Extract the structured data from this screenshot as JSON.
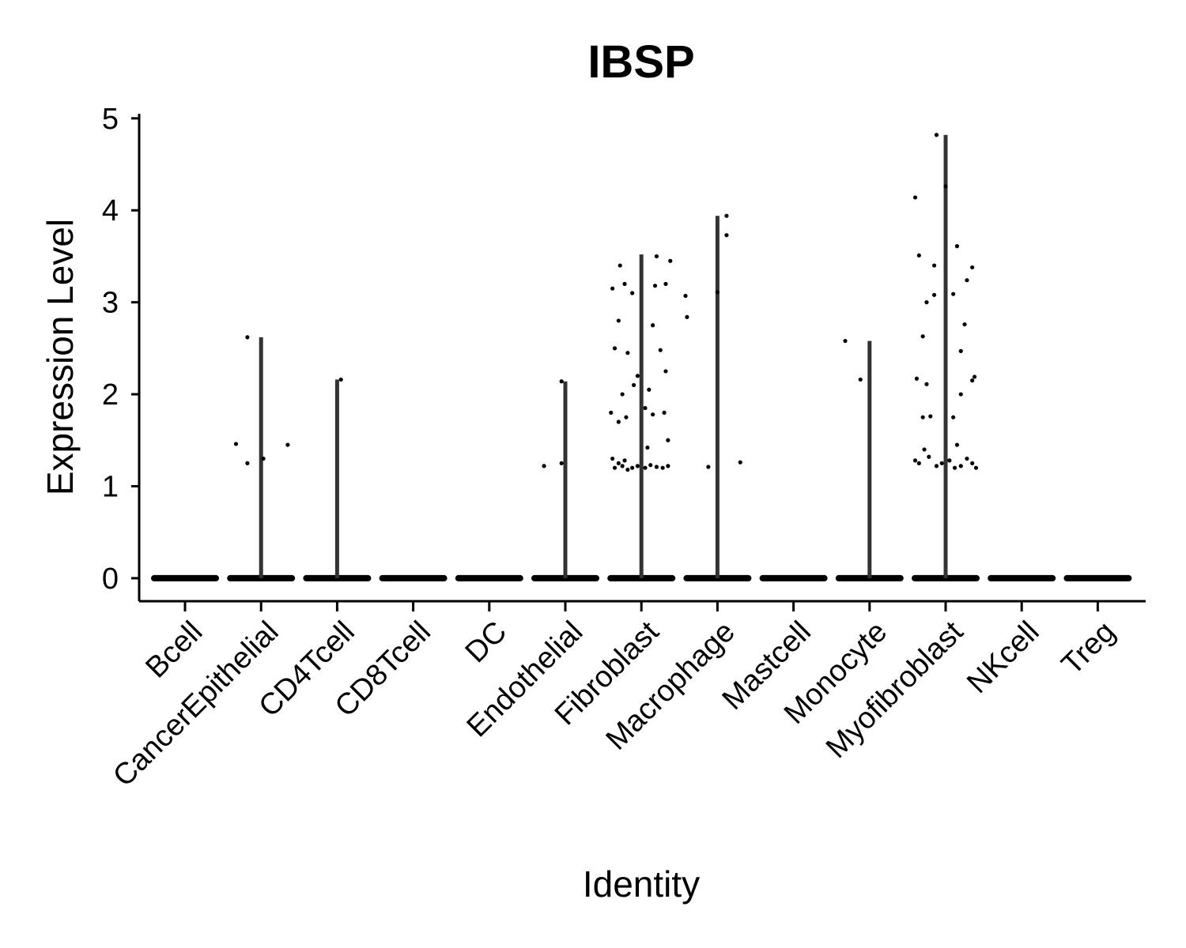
{
  "chart_data": {
    "type": "violin",
    "title": "IBSP",
    "xlabel": "Identity",
    "ylabel": "Expression Level",
    "ylim": [
      -0.25,
      5.05
    ],
    "yticks": [
      0,
      1,
      2,
      3,
      4,
      5
    ],
    "ytick_labels": [
      "0",
      "1",
      "2",
      "3",
      "4",
      "5"
    ],
    "grid": false,
    "legend": "none",
    "colors": {
      "violin": "#333333",
      "points": "#000000",
      "axis": "#000000"
    },
    "categories": [
      "Bcell",
      "CancerEpithelial",
      "CD4Tcell",
      "CD8Tcell",
      "DC",
      "Endothelial",
      "Fibroblast",
      "Macrophage",
      "Mastcell",
      "Monocyte",
      "Myofibroblast",
      "NKcell",
      "Treg"
    ],
    "max_values": [
      0,
      2.62,
      2.16,
      0,
      0,
      2.14,
      3.52,
      3.94,
      0,
      2.58,
      4.82,
      0,
      0
    ],
    "points": [
      [],
      [
        [
          -0.18,
          2.62
        ],
        [
          -0.33,
          1.46
        ],
        [
          -0.18,
          1.25
        ],
        [
          0.03,
          1.3
        ],
        [
          0.35,
          1.45
        ]
      ],
      [
        [
          0.05,
          2.16
        ]
      ],
      [],
      [],
      [
        [
          -0.28,
          1.22
        ],
        [
          -0.05,
          1.25
        ],
        [
          -0.05,
          2.14
        ]
      ],
      [
        [
          -0.4,
          1.8
        ],
        [
          -0.35,
          1.2
        ],
        [
          -0.3,
          1.25
        ],
        [
          -0.25,
          1.22
        ],
        [
          -0.18,
          1.18
        ],
        [
          -0.12,
          1.2
        ],
        [
          -0.05,
          1.22
        ],
        [
          0.05,
          1.2
        ],
        [
          0.12,
          1.23
        ],
        [
          0.2,
          1.21
        ],
        [
          0.28,
          1.2
        ],
        [
          0.35,
          1.22
        ],
        [
          -0.38,
          1.3
        ],
        [
          -0.22,
          1.28
        ],
        [
          0.08,
          1.42
        ],
        [
          -0.3,
          1.7
        ],
        [
          -0.2,
          1.75
        ],
        [
          0.15,
          1.78
        ],
        [
          0.3,
          1.8
        ],
        [
          -0.25,
          2.0
        ],
        [
          -0.1,
          2.1
        ],
        [
          0.1,
          2.05
        ],
        [
          0.32,
          2.25
        ],
        [
          -0.35,
          2.5
        ],
        [
          -0.18,
          2.45
        ],
        [
          0.25,
          2.48
        ],
        [
          -0.3,
          2.8
        ],
        [
          0.15,
          2.75
        ],
        [
          -0.38,
          3.15
        ],
        [
          -0.22,
          3.2
        ],
        [
          -0.12,
          3.1
        ],
        [
          0.18,
          3.18
        ],
        [
          0.32,
          3.2
        ],
        [
          -0.28,
          3.4
        ],
        [
          0.2,
          3.5
        ],
        [
          0.38,
          3.45
        ],
        [
          0.05,
          1.85
        ],
        [
          -0.05,
          2.2
        ],
        [
          0.35,
          1.5
        ]
      ],
      [
        [
          -0.4,
          2.84
        ],
        [
          -0.12,
          1.21
        ],
        [
          0.0,
          3.11
        ],
        [
          0.12,
          3.73
        ],
        [
          0.12,
          3.94
        ],
        [
          0.3,
          1.26
        ],
        [
          -0.42,
          3.07
        ]
      ],
      [],
      [
        [
          -0.32,
          2.58
        ],
        [
          -0.12,
          2.16
        ]
      ],
      [
        [
          -0.4,
          1.28
        ],
        [
          -0.35,
          1.25
        ],
        [
          -0.28,
          1.4
        ],
        [
          -0.22,
          1.32
        ],
        [
          -0.12,
          1.22
        ],
        [
          -0.05,
          1.25
        ],
        [
          0.05,
          1.28
        ],
        [
          0.12,
          1.2
        ],
        [
          0.2,
          1.22
        ],
        [
          0.28,
          1.3
        ],
        [
          0.35,
          1.25
        ],
        [
          0.4,
          1.2
        ],
        [
          -0.3,
          1.75
        ],
        [
          -0.2,
          1.76
        ],
        [
          0.1,
          1.75
        ],
        [
          -0.38,
          2.17
        ],
        [
          -0.25,
          2.11
        ],
        [
          0.2,
          2.0
        ],
        [
          0.35,
          2.15
        ],
        [
          -0.3,
          2.63
        ],
        [
          0.2,
          2.47
        ],
        [
          -0.25,
          3.0
        ],
        [
          -0.15,
          3.08
        ],
        [
          0.1,
          3.09
        ],
        [
          0.28,
          3.24
        ],
        [
          -0.35,
          3.51
        ],
        [
          -0.15,
          3.4
        ],
        [
          0.15,
          3.61
        ],
        [
          0.35,
          3.38
        ],
        [
          -0.4,
          4.14
        ],
        [
          0.0,
          4.26
        ],
        [
          -0.12,
          4.82
        ],
        [
          0.25,
          2.76
        ],
        [
          0.38,
          2.19
        ],
        [
          0.15,
          1.45
        ]
      ],
      [],
      []
    ]
  }
}
